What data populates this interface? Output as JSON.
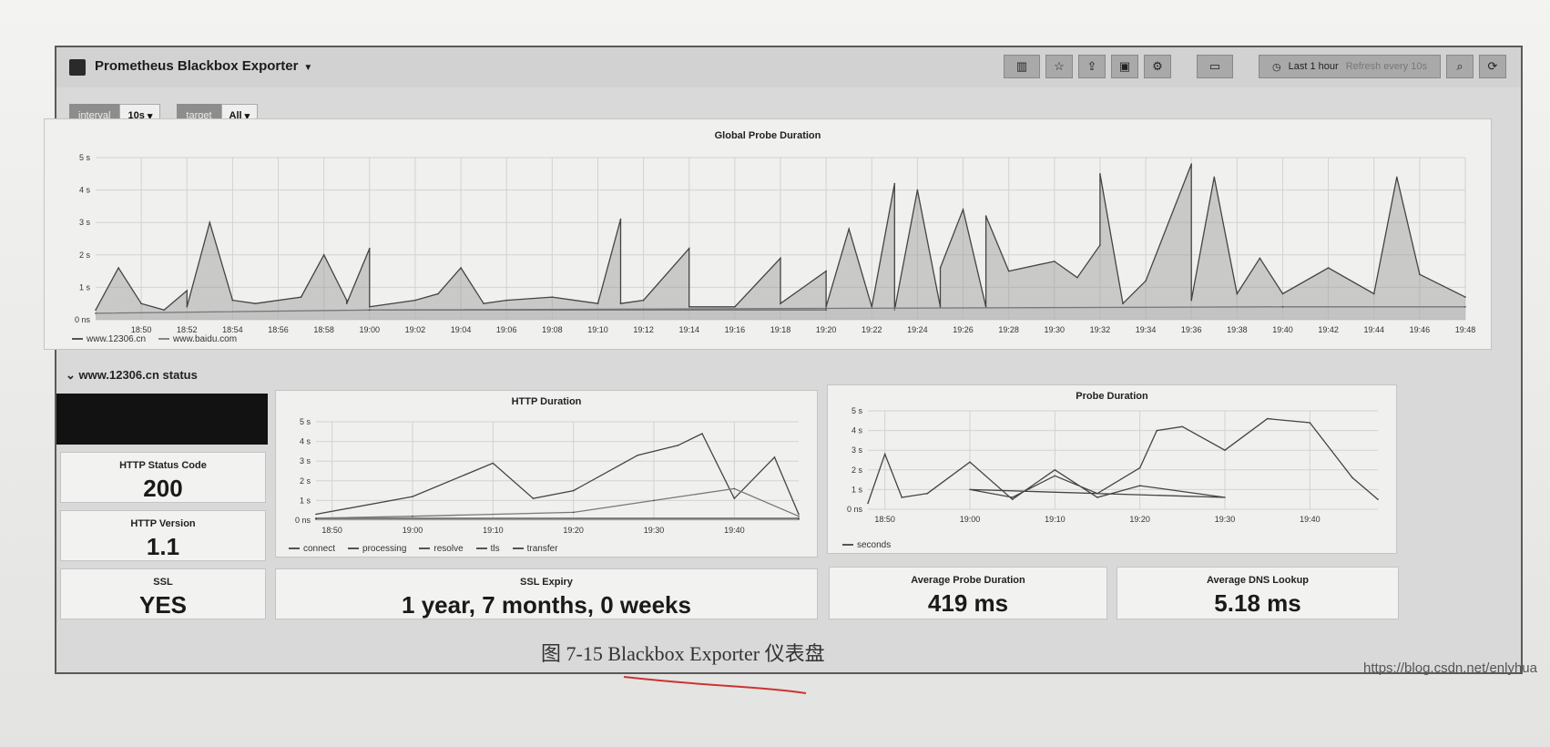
{
  "navbar": {
    "title": "Prometheus Blackbox Exporter",
    "time_range": "Last 1 hour",
    "refresh": "Refresh every 10s"
  },
  "icons": [
    "add-panel-icon",
    "star-icon",
    "share-icon",
    "save-icon",
    "settings-icon",
    "tv-icon",
    "clock-icon",
    "zoom-icon",
    "refresh-icon"
  ],
  "variables": [
    {
      "label": "interval",
      "value": "10s"
    },
    {
      "label": "target",
      "value": "All"
    }
  ],
  "global_panel": {
    "title": "Global Probe Duration",
    "legend": [
      "www.12306.cn",
      "www.baidu.com"
    ]
  },
  "row": {
    "title": "www.12306.cn status"
  },
  "http_panel": {
    "title": "HTTP Duration",
    "legend": [
      "connect",
      "processing",
      "resolve",
      "tls",
      "transfer"
    ]
  },
  "probe_panel": {
    "title": "Probe Duration",
    "legend": [
      "seconds"
    ]
  },
  "stats": {
    "status_code": {
      "title": "HTTP Status Code",
      "value": "200"
    },
    "version": {
      "title": "HTTP Version",
      "value": "1.1"
    },
    "ssl": {
      "title": "SSL",
      "value": "YES"
    },
    "ssl_expiry": {
      "title": "SSL Expiry",
      "value": "1 year, 7 months, 0 weeks"
    },
    "avg_probe": {
      "title": "Average Probe Duration",
      "value": "419 ms"
    },
    "avg_dns": {
      "title": "Average DNS Lookup",
      "value": "5.18 ms"
    }
  },
  "caption": "图 7-15   Blackbox Exporter 仪表盘",
  "watermark": "https://blog.csdn.net/enlyhua",
  "chart_data": [
    {
      "type": "area",
      "title": "Global Probe Duration",
      "y_ticks": [
        "0 ns",
        "1 s",
        "2 s",
        "3 s",
        "4 s",
        "5 s"
      ],
      "ylim": [
        0,
        5
      ],
      "x_ticks": [
        "18:50",
        "18:52",
        "18:54",
        "18:56",
        "18:58",
        "19:00",
        "19:02",
        "19:04",
        "19:06",
        "19:08",
        "19:10",
        "19:12",
        "19:14",
        "19:16",
        "19:18",
        "19:20",
        "19:22",
        "19:24",
        "19:26",
        "19:28",
        "19:30",
        "19:32",
        "19:34",
        "19:36",
        "19:38",
        "19:40",
        "19:42",
        "19:44",
        "19:46",
        "19:48"
      ],
      "xlim": [
        18.48,
        19.48
      ],
      "series": [
        {
          "name": "www.12306.cn",
          "x": [
            18.48,
            18.49,
            18.5,
            18.51,
            18.52,
            18.525,
            18.53,
            18.54,
            18.55,
            18.57,
            18.58,
            18.585,
            18.59,
            19.0,
            19.005,
            19.02,
            19.03,
            19.04,
            19.05,
            19.06,
            19.08,
            19.1,
            19.11,
            19.115,
            19.12,
            19.14,
            19.145,
            19.16,
            19.18,
            19.185,
            19.2,
            19.205,
            19.21,
            19.22,
            19.225,
            19.23,
            19.24,
            19.245,
            19.25,
            19.26,
            19.265,
            19.27,
            19.28,
            19.3,
            19.31,
            19.32,
            19.325,
            19.33,
            19.34,
            19.36,
            19.365,
            19.37,
            19.38,
            19.385,
            19.4,
            19.42,
            19.44,
            19.45,
            19.46,
            19.48
          ],
          "y": [
            0.3,
            1.6,
            0.5,
            0.3,
            0.9,
            0.4,
            3.0,
            0.6,
            0.5,
            0.7,
            2.0,
            0.6,
            0.5,
            2.2,
            0.4,
            0.6,
            0.8,
            1.6,
            0.5,
            0.6,
            0.7,
            0.5,
            3.1,
            0.5,
            0.6,
            2.2,
            0.4,
            0.4,
            1.9,
            0.5,
            1.5,
            0.4,
            2.8,
            0.4,
            4.2,
            0.3,
            4.0,
            0.4,
            1.6,
            3.4,
            0.4,
            3.2,
            1.5,
            1.8,
            1.3,
            2.3,
            4.5,
            0.5,
            1.2,
            4.8,
            0.6,
            4.4,
            0.8,
            1.9,
            0.8,
            1.6,
            0.8,
            4.4,
            1.4,
            0.7
          ]
        },
        {
          "name": "www.baidu.com",
          "x": [
            18.48,
            18.6,
            18.8,
            19.0,
            19.2,
            19.4,
            19.48
          ],
          "y": [
            0.2,
            0.3,
            0.3,
            0.3,
            0.35,
            0.4,
            0.4
          ]
        }
      ]
    },
    {
      "type": "line",
      "title": "HTTP Duration",
      "y_ticks": [
        "0 ns",
        "1 s",
        "2 s",
        "3 s",
        "4 s",
        "5 s"
      ],
      "ylim": [
        0,
        5
      ],
      "x_ticks": [
        "18:50",
        "19:00",
        "19:10",
        "19:20",
        "19:30",
        "19:40"
      ],
      "xlim": [
        18.48,
        19.48
      ],
      "series": [
        {
          "name": "connect",
          "x": [
            18.48,
            19.0,
            19.1,
            19.15,
            19.2,
            19.28,
            19.33,
            19.36,
            19.4,
            19.45,
            19.48
          ],
          "y": [
            0.3,
            1.2,
            2.9,
            1.1,
            1.5,
            3.3,
            3.8,
            4.4,
            1.1,
            3.2,
            0.3
          ]
        },
        {
          "name": "processing",
          "x": [
            18.48,
            19.0,
            19.2,
            19.3,
            19.4,
            19.48
          ],
          "y": [
            0.1,
            0.2,
            0.4,
            1.0,
            1.6,
            0.2
          ]
        },
        {
          "name": "resolve",
          "x": [
            18.48,
            19.48
          ],
          "y": [
            0.05,
            0.05
          ]
        },
        {
          "name": "tls",
          "x": [
            18.48,
            19.48
          ],
          "y": [
            0.05,
            0.05
          ]
        },
        {
          "name": "transfer",
          "x": [
            18.48,
            19.48
          ],
          "y": [
            0.1,
            0.1
          ]
        }
      ]
    },
    {
      "type": "line",
      "title": "Probe Duration",
      "y_ticks": [
        "0 ns",
        "1 s",
        "2 s",
        "3 s",
        "4 s",
        "5 s"
      ],
      "ylim": [
        0,
        5
      ],
      "x_ticks": [
        "18:50",
        "19:00",
        "19:10",
        "19:20",
        "19:30",
        "19:40"
      ],
      "xlim": [
        18.48,
        19.48
      ],
      "series": [
        {
          "name": "seconds",
          "x": [
            18.48,
            18.5,
            18.52,
            18.55,
            18.6,
            18.65,
            18.7,
            18.75,
            18.8,
            18.9,
            19.0,
            19.05,
            19.1,
            19.15,
            19.2,
            19.22,
            19.25,
            19.3,
            19.35,
            19.4,
            19.45,
            19.48
          ],
          "y": [
            0.3,
            2.8,
            0.6,
            0.8,
            2.4,
            0.5,
            2.0,
            0.6,
            1.2,
            0.6,
            1.0,
            0.6,
            1.7,
            0.8,
            2.1,
            4.0,
            4.2,
            3.0,
            4.6,
            4.4,
            1.6,
            0.5
          ]
        }
      ]
    }
  ]
}
